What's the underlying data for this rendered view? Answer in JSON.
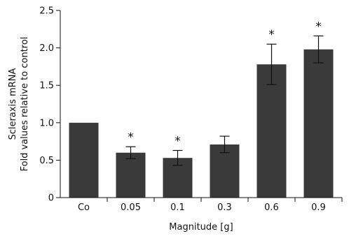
{
  "chart_data": {
    "type": "bar",
    "title": "",
    "xlabel": "Magnitude [g]",
    "ylabel_lines": [
      "Scleraxis mRNA",
      "Fold values relative to control"
    ],
    "categories": [
      "Co",
      "0.05",
      "0.1",
      "0.3",
      "0.6",
      "0.9"
    ],
    "series": [
      {
        "values": [
          1.0,
          0.6,
          0.53,
          0.71,
          1.78,
          1.98
        ],
        "errors": [
          0,
          0.08,
          0.1,
          0.11,
          0.27,
          0.18
        ],
        "significance": [
          "",
          "*",
          "*",
          "",
          "*",
          "*"
        ],
        "color": "#3a3a3a"
      }
    ],
    "ylim": [
      0,
      2.5
    ],
    "yticks": [
      0,
      0.5,
      1.0,
      1.5,
      2.0,
      2.5
    ],
    "ytick_labels": [
      "0",
      "0.5",
      "1.0",
      "1.5",
      "2.0",
      "2.5"
    ],
    "grid": false,
    "legend": "none"
  }
}
